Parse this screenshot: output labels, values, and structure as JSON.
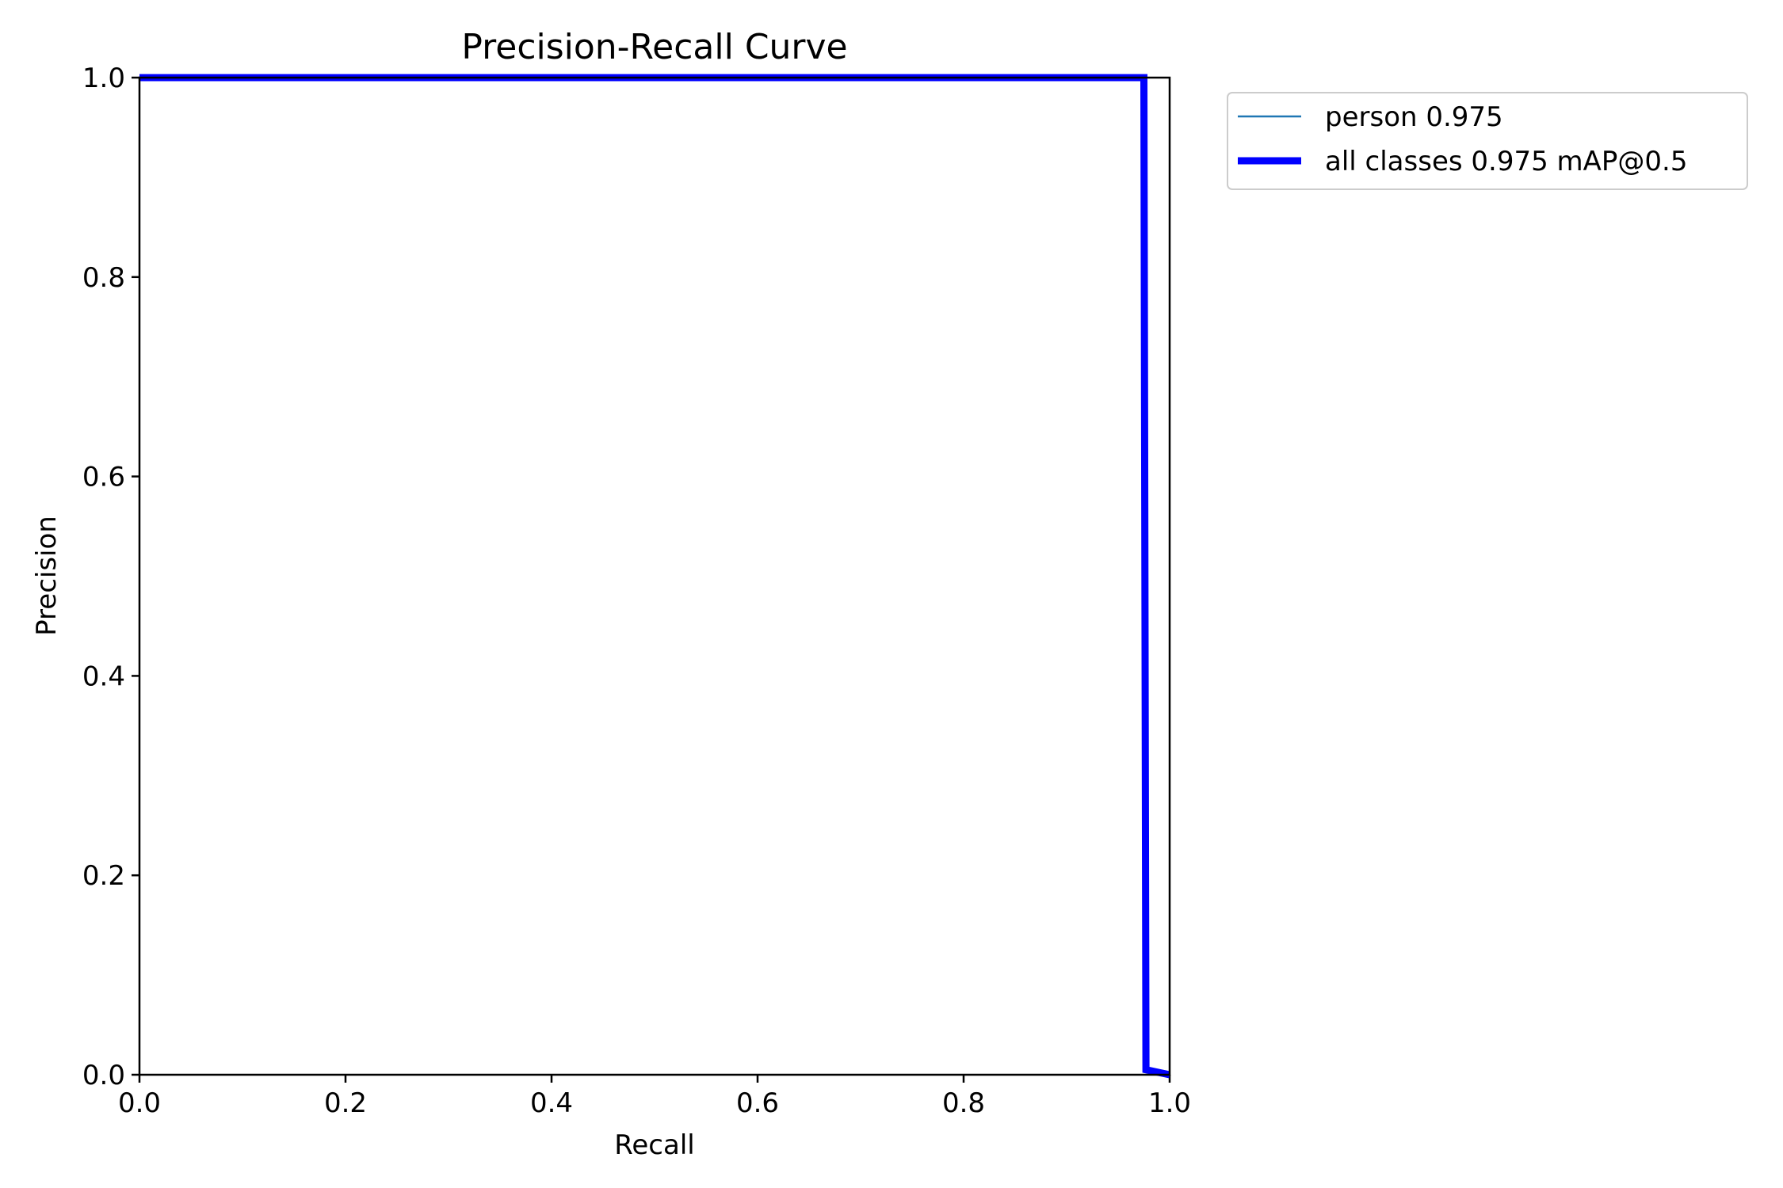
{
  "chart_data": {
    "type": "line",
    "title": "Precision-Recall Curve",
    "xlabel": "Recall",
    "ylabel": "Precision",
    "xlim": [
      0.0,
      1.0
    ],
    "ylim": [
      0.0,
      1.0
    ],
    "xticks": [
      "0.0",
      "0.2",
      "0.4",
      "0.6",
      "0.8",
      "1.0"
    ],
    "yticks": [
      "0.0",
      "0.2",
      "0.4",
      "0.6",
      "0.8",
      "1.0"
    ],
    "grid": false,
    "legend_position": "outside top-right",
    "series": [
      {
        "name": "person 0.975",
        "color": "#1f77b4",
        "style": "thin",
        "x": [
          0.0,
          0.975,
          0.976,
          0.977,
          1.0
        ],
        "y": [
          1.0,
          1.0,
          0.5,
          0.005,
          0.0
        ]
      },
      {
        "name": "all classes 0.975 mAP@0.5",
        "color": "#0000ff",
        "style": "thick",
        "x": [
          0.0,
          0.975,
          0.976,
          0.977,
          1.0
        ],
        "y": [
          1.0,
          1.0,
          0.5,
          0.005,
          0.0
        ]
      }
    ]
  }
}
